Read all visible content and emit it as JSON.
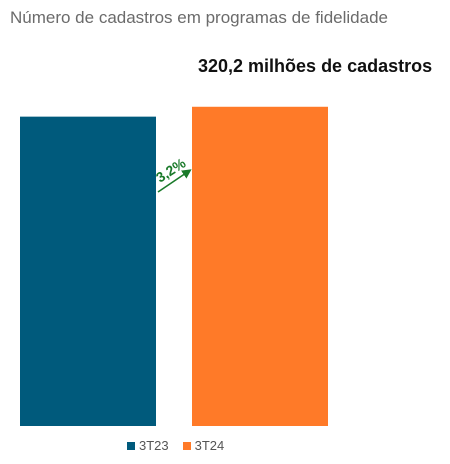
{
  "chart_data": {
    "type": "bar",
    "title": "Número de cadastros em programas de fidelidade",
    "subtitle": "320,2 milhões de cadastros",
    "categories": [
      "3T23",
      "3T24"
    ],
    "values": [
      310.3,
      320.2
    ],
    "colors": [
      "#005a7c",
      "#ff7a28"
    ],
    "annotation": {
      "label": "3,2%",
      "color": "#1a7a2a"
    },
    "ylim": [
      0,
      330
    ],
    "grid": false,
    "legend": {
      "position": "bottom",
      "entries": [
        "3T23",
        "3T24"
      ]
    }
  }
}
